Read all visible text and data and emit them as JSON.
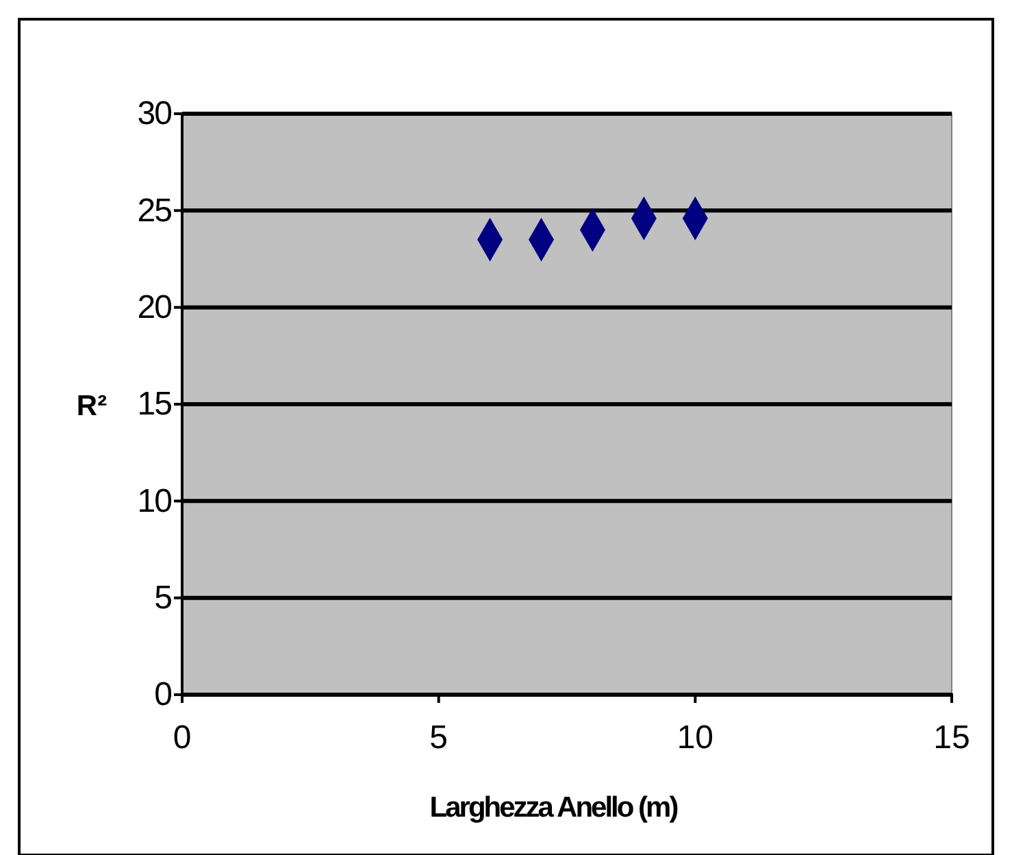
{
  "chart_data": {
    "type": "scatter",
    "xlabel": "Larghezza Anello (m)",
    "ylabel": "R²",
    "x": [
      6,
      7,
      8,
      9,
      10
    ],
    "series": [
      {
        "color": "#000080",
        "values": [
          23.5,
          23.5,
          24,
          24.6,
          24.6
        ]
      }
    ],
    "xlim": [
      0,
      15
    ],
    "xticks": [
      0,
      5,
      10,
      15
    ],
    "ylim": [
      0,
      30
    ],
    "yticks": [
      0,
      5,
      10,
      15,
      20,
      25,
      30
    ],
    "grid": "y",
    "marker": "diamond"
  }
}
